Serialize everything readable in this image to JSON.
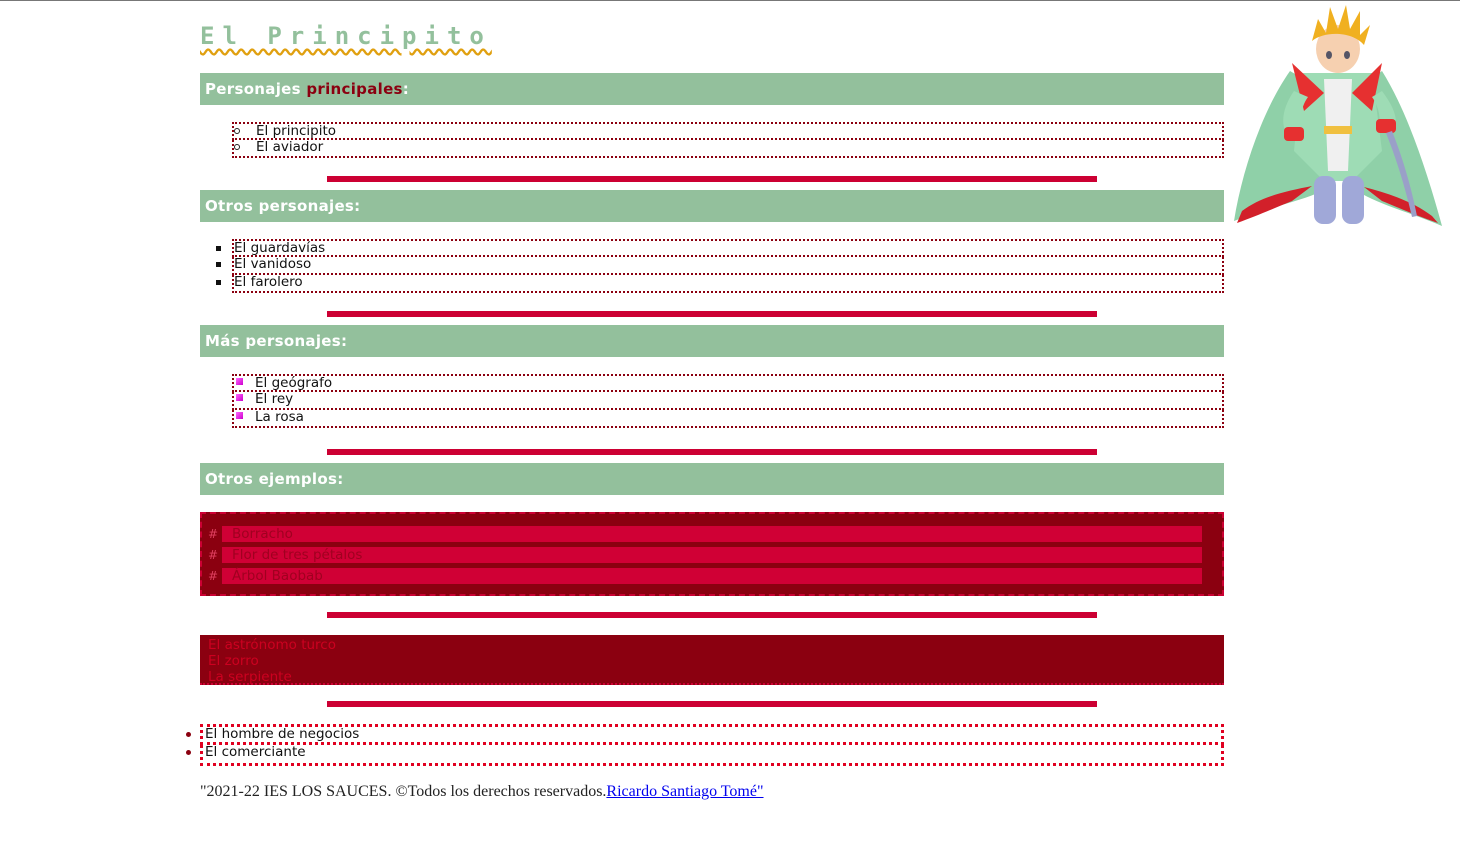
{
  "title": "El Principito",
  "sections": {
    "principales": {
      "label_a": "Personajes",
      "label_b": "principales",
      "label_c": ":",
      "items": [
        "El principito",
        "El aviador"
      ]
    },
    "otros": {
      "label": "Otros personajes:",
      "items": [
        "El guardavías",
        "El vanidoso",
        "El farolero"
      ]
    },
    "mas": {
      "label": "Más personajes:",
      "items": [
        "El geógrafo",
        "El rey",
        "La rosa"
      ]
    },
    "ejemplos": {
      "label": "Otros ejemplos:",
      "hash": "#",
      "box_items": [
        "Borracho",
        "Flor de tres pétalos",
        "Árbol Baobab"
      ],
      "dark_items": [
        "El astrónomo turco",
        "El zorro",
        "La serpiente"
      ],
      "dot_items": [
        "El hombre de negocios",
        "El comerciante"
      ]
    }
  },
  "footer": {
    "text": "\"2021-22  IES LOS SAUCES. ©Todos los derechos reservados.",
    "link": "Ricardo Santiago Tomé\""
  },
  "colors": {
    "green": "#93c09c",
    "crimson": "#cc0033",
    "dark_red": "#8b0010"
  },
  "image": {
    "icon": "little-prince-figure"
  }
}
